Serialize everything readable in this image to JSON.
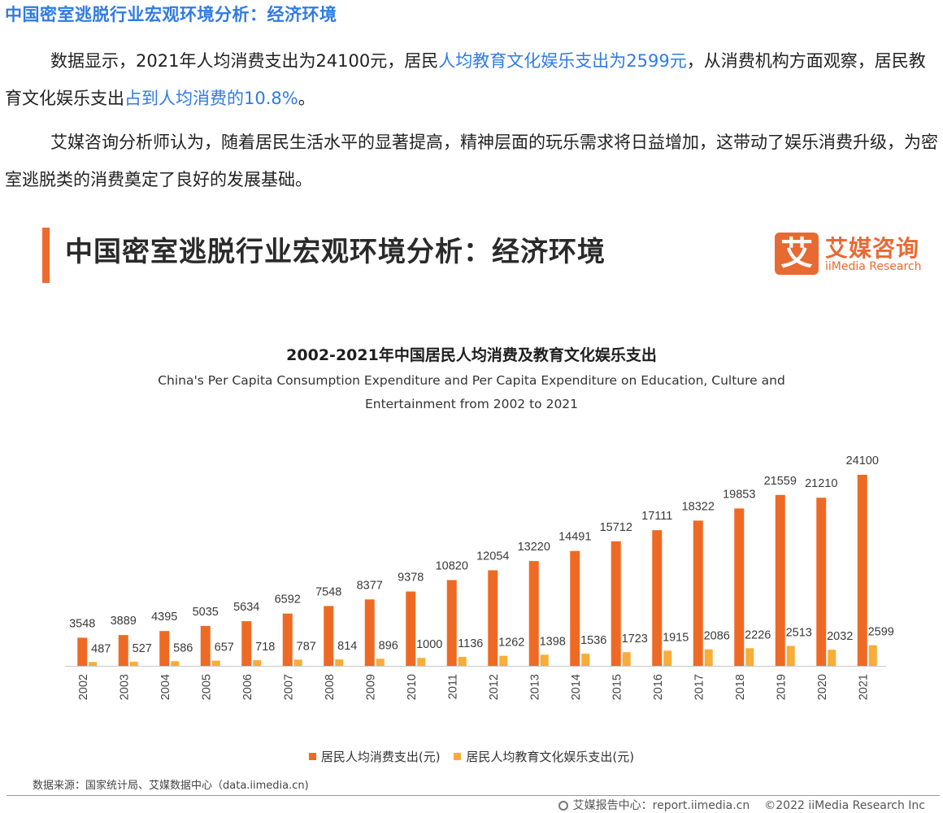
{
  "article": {
    "heading": "中国密室逃脱行业宏观环境分析：经济环境",
    "para1_a": "数据显示，2021年人均消费支出为24100元，居民",
    "para1_hl1": "人均教育文化娱乐支出为2599元",
    "para1_b": "，从消费机构方面观察，居民教育文化娱乐支出",
    "para1_hl2": "占到人均消费的10.8%",
    "para1_c": "。",
    "para2": "艾媒咨询分析师认为，随着居民生活水平的显著提高，精神层面的玩乐需求将日益增加，这带动了娱乐消费升级，为密室逃脱类的消费奠定了良好的发展基础。"
  },
  "slide": {
    "title": "中国密室逃脱行业宏观环境分析：经济环境",
    "logo_mark": "艾",
    "logo_cn": "艾媒咨询",
    "logo_en": "iiMedia Research",
    "source": "数据来源：国家统计局、艾媒数据中心（data.iimedia.cn)",
    "footer_site": "艾媒报告中心：report.iimedia.cn",
    "footer_copy": "©2022  iiMedia Research  Inc"
  },
  "chart_data": {
    "type": "bar",
    "title": "2002-2021年中国居民人均消费及教育文化娱乐支出",
    "subtitle": "China's Per Capita Consumption Expenditure and Per Capita Expenditure on Education, Culture and Entertainment from 2002 to 2021",
    "categories": [
      "2002",
      "2003",
      "2004",
      "2005",
      "2006",
      "2007",
      "2008",
      "2009",
      "2010",
      "2011",
      "2012",
      "2013",
      "2014",
      "2015",
      "2016",
      "2017",
      "2018",
      "2019",
      "2020",
      "2021"
    ],
    "series": [
      {
        "name": "居民人均消费支出(元)",
        "color": "#ee6a24",
        "values": [
          3548,
          3889,
          4395,
          5035,
          5634,
          6592,
          7548,
          8377,
          9378,
          10820,
          12054,
          13220,
          14491,
          15712,
          17111,
          18322,
          19853,
          21559,
          21210,
          24100
        ]
      },
      {
        "name": "居民人均教育文化娱乐支出(元)",
        "color": "#f7ad38",
        "values": [
          487,
          527,
          586,
          657,
          718,
          787,
          814,
          896,
          1000,
          1136,
          1262,
          1398,
          1536,
          1723,
          1915,
          2086,
          2226,
          2513,
          2032,
          2599
        ]
      }
    ],
    "ylim": [
      0,
      24100
    ],
    "grid": false,
    "legend_position": "bottom"
  }
}
